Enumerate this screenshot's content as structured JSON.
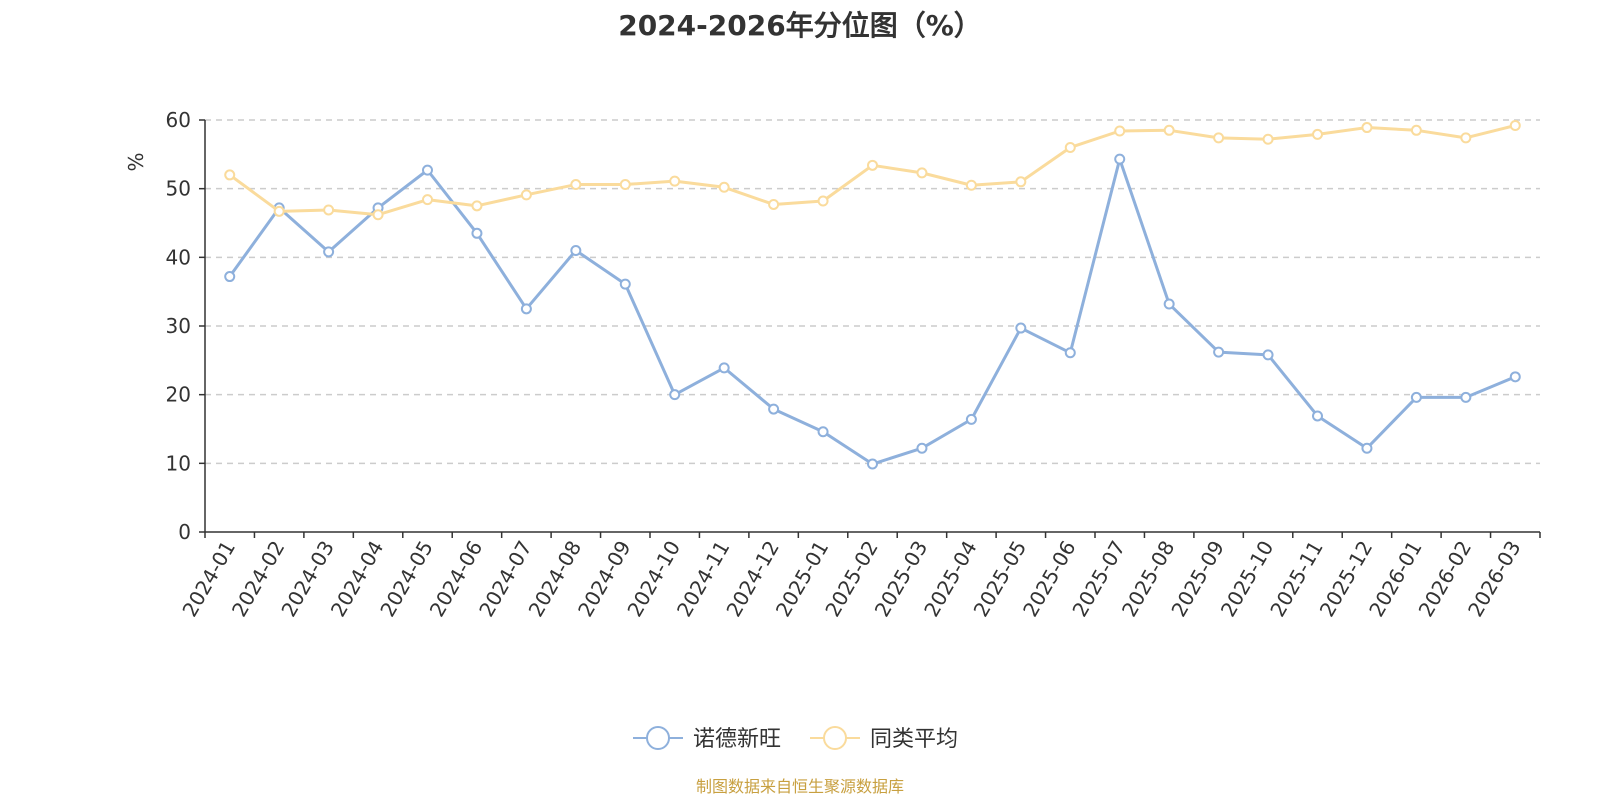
{
  "chart_data": {
    "type": "line",
    "title": "2024-2026年分位图（%）",
    "ylabel": "%",
    "xlabel": "",
    "ylim": [
      0,
      60
    ],
    "yticks": [
      0,
      10,
      20,
      30,
      40,
      50,
      60
    ],
    "grid": true,
    "legend_position": "bottom-center",
    "categories": [
      "2024-01",
      "2024-02",
      "2024-03",
      "2024-04",
      "2024-05",
      "2024-06",
      "2024-07",
      "2024-08",
      "2024-09",
      "2024-10",
      "2024-11",
      "2024-12",
      "2025-01",
      "2025-02",
      "2025-03",
      "2025-04",
      "2025-05",
      "2025-06",
      "2025-07",
      "2025-08",
      "2025-09",
      "2025-10",
      "2025-11",
      "2025-12",
      "2026-01",
      "2026-02",
      "2026-03"
    ],
    "series": [
      {
        "name": "诺德新旺",
        "color": "#8eb0dc",
        "values": [
          37.2,
          47.2,
          40.8,
          47.2,
          52.7,
          43.5,
          32.5,
          41.0,
          36.1,
          20.0,
          23.9,
          17.9,
          14.6,
          9.9,
          12.2,
          16.4,
          29.7,
          26.1,
          54.3,
          33.2,
          26.2,
          25.8,
          16.9,
          12.2,
          19.6,
          19.6,
          22.6
        ]
      },
      {
        "name": "同类平均",
        "color": "#fadb9c",
        "values": [
          52.0,
          46.7,
          46.9,
          46.2,
          48.4,
          47.5,
          49.1,
          50.6,
          50.6,
          51.1,
          50.2,
          47.7,
          48.2,
          53.4,
          52.3,
          50.5,
          51.0,
          56.0,
          58.4,
          58.5,
          57.4,
          57.2,
          57.9,
          58.9,
          58.5,
          57.4,
          59.2
        ]
      }
    ]
  },
  "colors": {
    "axis": "#333333",
    "grid": "#cccccc",
    "ylabel": "#ff0000",
    "source": "#c8a040"
  },
  "source": "制图数据来自恒生聚源数据库"
}
